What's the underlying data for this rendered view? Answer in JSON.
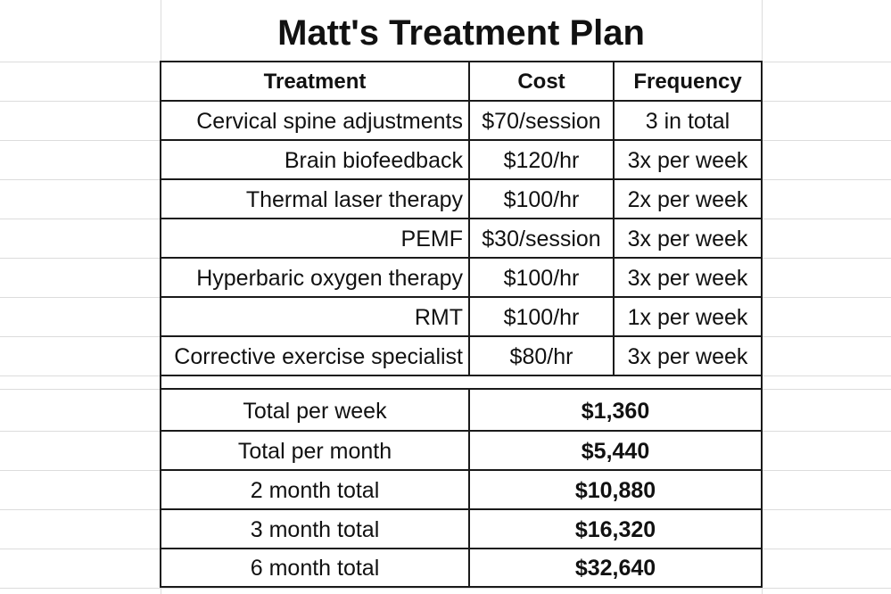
{
  "title": "Matt's Treatment Plan",
  "headers": {
    "treatment": "Treatment",
    "cost": "Cost",
    "frequency": "Frequency"
  },
  "treatments": [
    {
      "name": "Cervical spine adjustments",
      "cost": "$70/session",
      "frequency": "3 in total"
    },
    {
      "name": "Brain biofeedback",
      "cost": "$120/hr",
      "frequency": "3x per week"
    },
    {
      "name": "Thermal laser therapy",
      "cost": "$100/hr",
      "frequency": "2x per week"
    },
    {
      "name": "PEMF",
      "cost": "$30/session",
      "frequency": "3x per week"
    },
    {
      "name": "Hyperbaric oxygen therapy",
      "cost": "$100/hr",
      "frequency": "3x per week"
    },
    {
      "name": "RMT",
      "cost": "$100/hr",
      "frequency": "1x per week"
    },
    {
      "name": "Corrective exercise specialist",
      "cost": "$80/hr",
      "frequency": "3x per week"
    }
  ],
  "totals": [
    {
      "label": "Total per week",
      "value": "$1,360"
    },
    {
      "label": "Total per month",
      "value": "$5,440"
    },
    {
      "label": "2 month total",
      "value": "$10,880"
    },
    {
      "label": "3 month total",
      "value": "$16,320"
    },
    {
      "label": "6 month total",
      "value": "$32,640"
    }
  ]
}
